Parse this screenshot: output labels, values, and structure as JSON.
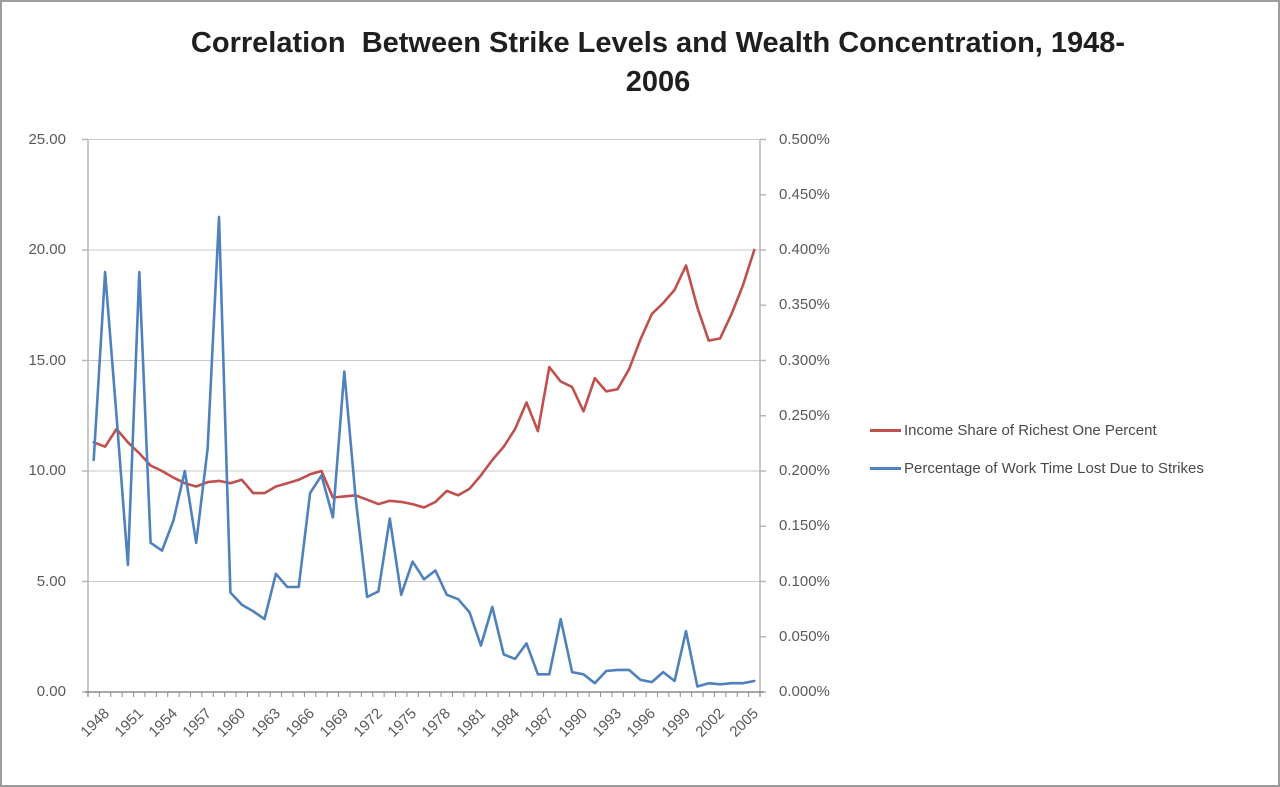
{
  "frame": {
    "background": "#ffffff",
    "border_color": "#9c9c9c"
  },
  "title": {
    "line1": "Correlation  Between Strike Levels and Wealth Concentration, 1948-",
    "line2": "2006"
  },
  "chart_data": {
    "type": "line",
    "title": "Correlation Between Strike Levels and Wealth Concentration, 1948-2006",
    "grid": true,
    "legend_position": "right",
    "x": [
      1948,
      1949,
      1950,
      1951,
      1952,
      1953,
      1954,
      1955,
      1956,
      1957,
      1958,
      1959,
      1960,
      1961,
      1962,
      1963,
      1964,
      1965,
      1966,
      1967,
      1968,
      1969,
      1970,
      1971,
      1972,
      1973,
      1974,
      1975,
      1976,
      1977,
      1978,
      1979,
      1980,
      1981,
      1982,
      1983,
      1984,
      1985,
      1986,
      1987,
      1988,
      1989,
      1990,
      1991,
      1992,
      1993,
      1994,
      1995,
      1996,
      1997,
      1998,
      1999,
      2000,
      2001,
      2002,
      2003,
      2004,
      2005,
      2006
    ],
    "x_tick_labels": [
      "1948",
      "1951",
      "1954",
      "1957",
      "1960",
      "1963",
      "1966",
      "1969",
      "1972",
      "1975",
      "1978",
      "1981",
      "1984",
      "1987",
      "1990",
      "1993",
      "1996",
      "1999",
      "2002",
      "2005"
    ],
    "left_axis": {
      "min": 0,
      "max": 25,
      "step": 5,
      "tick_labels": [
        "25.00",
        "20.00",
        "15.00",
        "10.00",
        "5.00",
        "0.00"
      ]
    },
    "right_axis": {
      "min": 0,
      "max": 0.5,
      "step": 0.05,
      "unit": "%",
      "tick_labels": [
        "0.500%",
        "0.450%",
        "0.400%",
        "0.350%",
        "0.300%",
        "0.250%",
        "0.200%",
        "0.150%",
        "0.100%",
        "0.050%",
        "0.000%"
      ]
    },
    "series": [
      {
        "name": "Income Share of Richest One Percent",
        "axis": "left",
        "color": "#C0504D",
        "values": [
          11.3,
          11.1,
          11.9,
          11.3,
          10.8,
          10.25,
          10.0,
          9.7,
          9.45,
          9.3,
          9.5,
          9.55,
          9.45,
          9.6,
          9.0,
          9.0,
          9.3,
          9.45,
          9.6,
          9.85,
          10.0,
          8.8,
          8.85,
          8.9,
          8.7,
          8.5,
          8.65,
          8.6,
          8.5,
          8.35,
          8.6,
          9.1,
          8.9,
          9.2,
          9.8,
          10.5,
          11.1,
          11.9,
          13.1,
          11.8,
          14.7,
          14.05,
          13.8,
          12.7,
          14.2,
          13.6,
          13.7,
          14.6,
          15.95,
          17.1,
          17.6,
          18.2,
          19.3,
          17.4,
          15.9,
          16.0,
          17.1,
          18.4,
          20.0
        ]
      },
      {
        "name": "Percentage of Work Time Lost Due to Strikes",
        "axis": "right",
        "color": "#4F81BD",
        "values": [
          0.21,
          0.38,
          0.25,
          0.115,
          0.38,
          0.135,
          0.128,
          0.155,
          0.2,
          0.135,
          0.22,
          0.43,
          0.09,
          0.079,
          0.073,
          0.066,
          0.107,
          0.095,
          0.095,
          0.18,
          0.196,
          0.158,
          0.29,
          0.175,
          0.086,
          0.091,
          0.157,
          0.088,
          0.118,
          0.102,
          0.11,
          0.088,
          0.084,
          0.072,
          0.042,
          0.077,
          0.034,
          0.03,
          0.044,
          0.016,
          0.016,
          0.066,
          0.018,
          0.016,
          0.008,
          0.019,
          0.02,
          0.02,
          0.011,
          0.009,
          0.018,
          0.01,
          0.055,
          0.005,
          0.008,
          0.007,
          0.008,
          0.008,
          0.01
        ]
      }
    ],
    "style": {
      "gridline_color": "#c9c9c9",
      "side_axis_color": "#b7b7b7",
      "bottom_axis_color": "#8c8c8c",
      "line_width": 2.6
    }
  }
}
